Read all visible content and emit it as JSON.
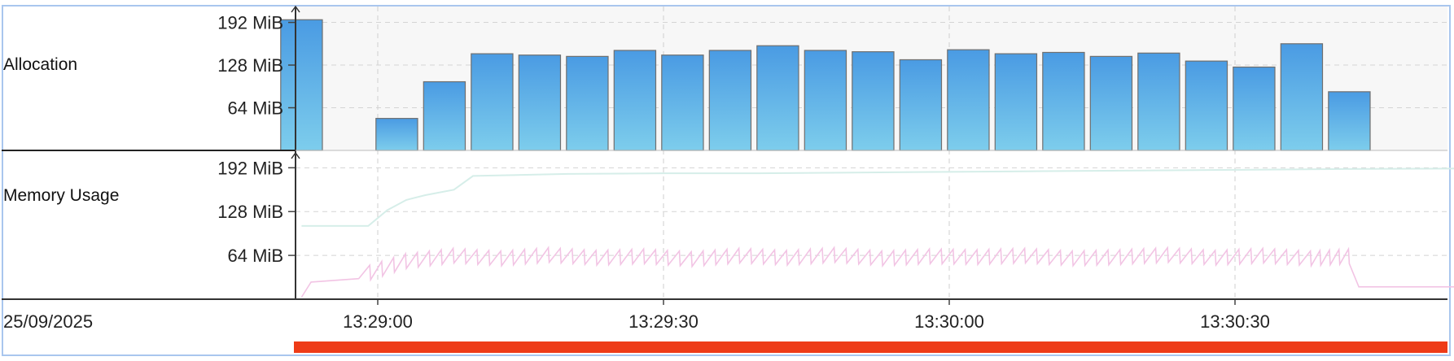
{
  "rows": {
    "allocation": "Allocation",
    "memory": "Memory Usage"
  },
  "date": "25/09/2025",
  "colors": {
    "bar_top": "#4a9be3",
    "bar_bottom": "#7dcdec",
    "committed": "#d6eee9",
    "used": "#f2c4e4",
    "red_bar": "#ee3b17"
  },
  "chart_data": [
    {
      "type": "bar",
      "title": "Allocation",
      "y_ticks": [
        "64 MiB",
        "128 MiB",
        "192 MiB"
      ],
      "ylim": [
        0,
        200
      ],
      "x_ticks": [
        "13:29:00",
        "13:29:30",
        "13:30:00",
        "13:30:30"
      ],
      "grid": true,
      "categories": [
        "13:28:52",
        "13:28:57",
        "13:29:02",
        "13:29:07",
        "13:29:12",
        "13:29:17",
        "13:29:22",
        "13:29:27",
        "13:29:32",
        "13:29:37",
        "13:29:42",
        "13:29:47",
        "13:29:52",
        "13:29:57",
        "13:30:02",
        "13:30:07",
        "13:30:12",
        "13:30:17",
        "13:30:22",
        "13:30:27",
        "13:30:32",
        "13:30:37",
        "13:30:42"
      ],
      "values": [
        196,
        0,
        48,
        103,
        145,
        143,
        141,
        150,
        143,
        150,
        157,
        150,
        148,
        136,
        151,
        145,
        147,
        141,
        146,
        134,
        125,
        160,
        88
      ]
    },
    {
      "type": "line",
      "title": "Memory Usage",
      "y_ticks": [
        "64 MiB",
        "128 MiB",
        "192 MiB"
      ],
      "ylim": [
        0,
        200
      ],
      "x_ticks": [
        "13:29:00",
        "13:29:30",
        "13:30:00",
        "13:30:30"
      ],
      "grid": true,
      "series": [
        {
          "x": [
            "13:28:52",
            "13:28:55",
            "13:28:57",
            "13:28:59",
            "13:29:01",
            "13:29:03",
            "13:29:05",
            "13:29:08",
            "13:29:10",
            "13:29:20",
            "13:29:30",
            "13:29:40",
            "13:29:50",
            "13:30:00",
            "13:30:10",
            "13:30:20",
            "13:30:30",
            "13:30:40",
            "13:30:55"
          ],
          "values": [
            107,
            107,
            107,
            107,
            130,
            145,
            152,
            160,
            180,
            183,
            184,
            184,
            185,
            186,
            187,
            188,
            189,
            190,
            191
          ]
        },
        {
          "x": [
            "13:28:52",
            "13:28:53",
            "13:28:58",
            "13:29:03",
            "13:29:08",
            "13:29:13",
            "13:29:18",
            "13:29:23",
            "13:29:28",
            "13:29:33",
            "13:29:38",
            "13:29:43",
            "13:29:48",
            "13:29:53",
            "13:29:58",
            "13:30:03",
            "13:30:08",
            "13:30:13",
            "13:30:18",
            "13:30:23",
            "13:30:28",
            "13:30:33",
            "13:30:38",
            "13:30:42",
            "13:30:43",
            "13:30:55"
          ],
          "values": [
            3,
            25,
            30,
            52,
            60,
            56,
            61,
            57,
            59,
            55,
            60,
            57,
            61,
            56,
            59,
            58,
            60,
            56,
            58,
            61,
            57,
            60,
            56,
            59,
            18,
            18
          ]
        }
      ]
    }
  ]
}
